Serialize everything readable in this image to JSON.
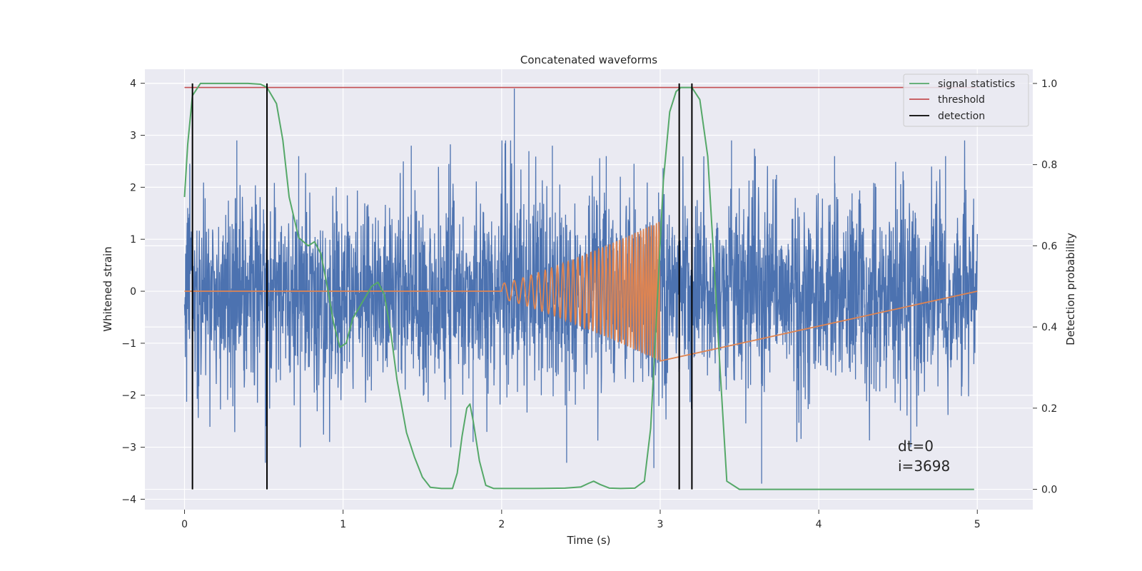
{
  "chart_data": {
    "type": "line",
    "title": "Concatenated waveforms",
    "xlabel": "Time (s)",
    "ylabel": "Whitened strain",
    "y2label": "Detection probability",
    "xlim": [
      -0.25,
      5.35
    ],
    "ylim": [
      -4.2,
      4.27
    ],
    "y2lim": [
      -0.05,
      1.035
    ],
    "xticks": [
      "0",
      "1",
      "2",
      "3",
      "4",
      "5"
    ],
    "yticks": [
      "−4",
      "−3",
      "−2",
      "−1",
      "0",
      "1",
      "2",
      "3",
      "4"
    ],
    "y2ticks": [
      "0.0",
      "0.2",
      "0.4",
      "0.6",
      "0.8",
      "1.0"
    ],
    "grid": true,
    "legend_position": "top-right",
    "legend": [
      "signal statistics",
      "threshold",
      "detection"
    ],
    "annotation": [
      "dt=0",
      "i=3698"
    ],
    "colors": {
      "strain": "#4c72b0",
      "template": "#dd8452",
      "signal_statistics": "#55a868",
      "threshold": "#c44e52",
      "detection": "#000000",
      "background": "#eaeaf2",
      "grid": "#ffffff"
    },
    "series": [
      {
        "role": "whitened_strain_noise",
        "x_range": [
          0,
          5
        ],
        "approx_amplitude": 1.3,
        "peak_values": [
          [
            0.02,
            1.6
          ],
          [
            0.33,
            2.9
          ],
          [
            0.72,
            2.6
          ],
          [
            1.43,
            2.8
          ],
          [
            2.08,
            3.9
          ],
          [
            2.32,
            2.8
          ],
          [
            2.66,
            2.6
          ],
          [
            3.45,
            2.9
          ],
          [
            3.6,
            2.6
          ],
          [
            4.1,
            2.6
          ],
          [
            4.8,
            2.6
          ],
          [
            0.05,
            -2.6
          ],
          [
            0.51,
            -3.3
          ],
          [
            0.73,
            -3.0
          ],
          [
            1.68,
            -3.0
          ],
          [
            1.82,
            -2.9
          ],
          [
            2.41,
            -3.3
          ],
          [
            2.96,
            -3.4
          ],
          [
            3.64,
            -3.7
          ],
          [
            4.58,
            -3.0
          ]
        ]
      },
      {
        "role": "injected_chirp",
        "x": [
          0,
          2.0,
          3.0,
          5.0
        ],
        "start_amplitude": 0.15,
        "end_amplitude": 1.35,
        "start_frequency_hz": 15,
        "end_frequency_hz": 65
      },
      {
        "name": "signal statistics",
        "axis": "right",
        "x": [
          0.0,
          0.02,
          0.05,
          0.1,
          0.2,
          0.4,
          0.48,
          0.52,
          0.58,
          0.62,
          0.66,
          0.72,
          0.78,
          0.82,
          0.86,
          0.9,
          0.94,
          0.98,
          1.02,
          1.06,
          1.12,
          1.18,
          1.22,
          1.26,
          1.3,
          1.34,
          1.4,
          1.45,
          1.5,
          1.55,
          1.62,
          1.69,
          1.72,
          1.75,
          1.78,
          1.8,
          1.82,
          1.86,
          1.9,
          1.95,
          2.05,
          2.2,
          2.4,
          2.5,
          2.55,
          2.58,
          2.62,
          2.68,
          2.75,
          2.84,
          2.9,
          2.94,
          2.98,
          3.02,
          3.06,
          3.1,
          3.13,
          3.2,
          3.25,
          3.3,
          3.33,
          3.38,
          3.42,
          3.5,
          3.8,
          4.5,
          4.98
        ],
        "values": [
          0.72,
          0.85,
          0.97,
          1.0,
          1.0,
          1.0,
          0.998,
          0.99,
          0.95,
          0.86,
          0.72,
          0.62,
          0.6,
          0.61,
          0.58,
          0.5,
          0.41,
          0.35,
          0.36,
          0.42,
          0.46,
          0.5,
          0.51,
          0.48,
          0.39,
          0.27,
          0.14,
          0.08,
          0.03,
          0.005,
          0.002,
          0.002,
          0.04,
          0.13,
          0.2,
          0.21,
          0.17,
          0.07,
          0.01,
          0.002,
          0.002,
          0.002,
          0.003,
          0.006,
          0.015,
          0.02,
          0.012,
          0.003,
          0.002,
          0.003,
          0.02,
          0.15,
          0.45,
          0.76,
          0.93,
          0.98,
          0.99,
          0.99,
          0.96,
          0.82,
          0.62,
          0.28,
          0.02,
          0.0,
          0.0,
          0.0,
          0.0
        ]
      },
      {
        "name": "threshold",
        "axis": "right",
        "x": [
          0,
          5
        ],
        "values": [
          0.99,
          0.99
        ]
      },
      {
        "name": "detection",
        "axis": "right",
        "type": "vlines",
        "x": [
          0.05,
          0.52,
          3.12,
          3.2
        ],
        "range": [
          0.0,
          1.0
        ]
      }
    ]
  }
}
